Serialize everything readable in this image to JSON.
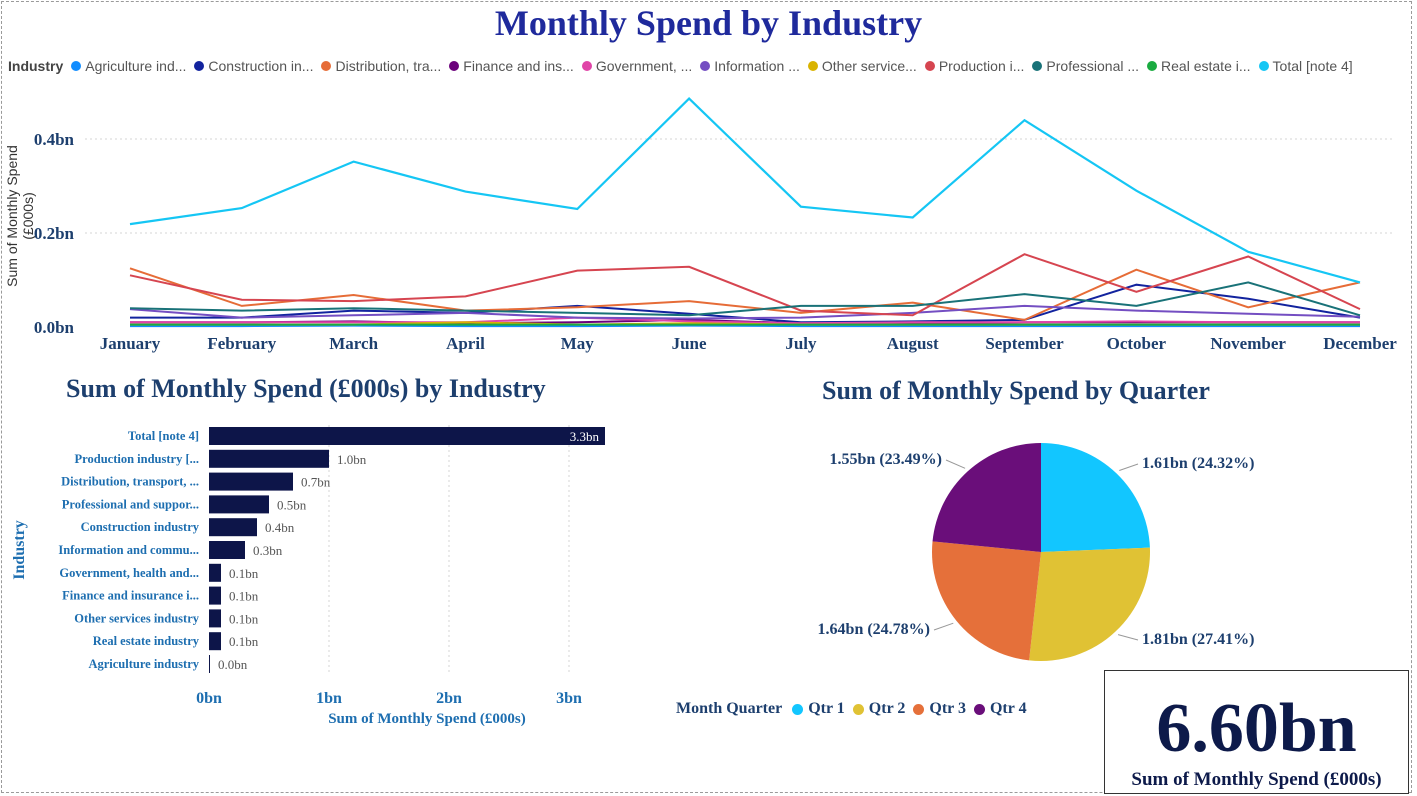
{
  "title": "Monthly Spend by Industry",
  "line_legend_title": "Industry",
  "line_y_label": "Sum of Monthly Spend (£000s)",
  "bar_title": "Sum of Monthly Spend (£000s) by Industry",
  "bar_y_label": "Industry",
  "bar_x_label": "Sum of Monthly Spend (£000s)",
  "pie_title": "Sum of Monthly Spend by Quarter",
  "pie_legend_title": "Month Quarter",
  "kpi": {
    "value": "6.60bn",
    "label": "Sum of Monthly Spend (£000s)"
  },
  "chart_data": [
    {
      "type": "line",
      "x": [
        "January",
        "February",
        "March",
        "April",
        "May",
        "June",
        "July",
        "August",
        "September",
        "October",
        "November",
        "December"
      ],
      "ylim": [
        0,
        0.5
      ],
      "y_ticks": [
        "0.0bn",
        "0.2bn",
        "0.4bn"
      ],
      "grid": true,
      "legend": "top",
      "series": [
        {
          "name": "Agriculture ind...",
          "legend_label": "Agriculture ind...",
          "color": "#118dff",
          "values": [
            0.002,
            0.002,
            0.003,
            0.002,
            0.002,
            0.003,
            0.002,
            0.002,
            0.002,
            0.002,
            0.002,
            0.002
          ]
        },
        {
          "name": "Construction in...",
          "legend_label": "Construction in...",
          "color": "#12239e",
          "values": [
            0.02,
            0.02,
            0.035,
            0.03,
            0.045,
            0.028,
            0.01,
            0.012,
            0.015,
            0.09,
            0.06,
            0.02
          ]
        },
        {
          "name": "Distribution, tra...",
          "legend_label": "Distribution, tra...",
          "color": "#e66c37",
          "values": [
            0.125,
            0.045,
            0.068,
            0.035,
            0.042,
            0.055,
            0.03,
            0.052,
            0.015,
            0.122,
            0.042,
            0.095
          ]
        },
        {
          "name": "Finance and ins...",
          "legend_label": "Finance and ins...",
          "color": "#6b007b",
          "values": [
            0.01,
            0.01,
            0.012,
            0.008,
            0.01,
            0.015,
            0.008,
            0.008,
            0.01,
            0.01,
            0.01,
            0.01
          ]
        },
        {
          "name": "Government, ...",
          "legend_label": "Government, ...",
          "color": "#e044a7",
          "values": [
            0.01,
            0.01,
            0.01,
            0.01,
            0.02,
            0.012,
            0.008,
            0.01,
            0.01,
            0.012,
            0.01,
            0.01
          ]
        },
        {
          "name": "Information ...",
          "legend_label": "Information ...",
          "color": "#744ec2",
          "values": [
            0.038,
            0.02,
            0.025,
            0.03,
            0.02,
            0.018,
            0.02,
            0.03,
            0.045,
            0.035,
            0.028,
            0.022
          ]
        },
        {
          "name": "Other service...",
          "legend_label": "Other service...",
          "color": "#d9b300",
          "values": [
            0.005,
            0.005,
            0.005,
            0.01,
            0.005,
            0.008,
            0.005,
            0.005,
            0.005,
            0.005,
            0.005,
            0.005
          ]
        },
        {
          "name": "Production i...",
          "legend_label": "Production i...",
          "color": "#d64550",
          "values": [
            0.11,
            0.058,
            0.055,
            0.065,
            0.12,
            0.128,
            0.035,
            0.025,
            0.155,
            0.075,
            0.15,
            0.038
          ]
        },
        {
          "name": "Professional ...",
          "legend_label": "Professional ...",
          "color": "#197278",
          "values": [
            0.04,
            0.035,
            0.04,
            0.035,
            0.03,
            0.025,
            0.045,
            0.045,
            0.07,
            0.045,
            0.095,
            0.025
          ]
        },
        {
          "name": "Real estate i...",
          "legend_label": "Real estate i...",
          "color": "#1aab40",
          "values": [
            0.005,
            0.005,
            0.005,
            0.005,
            0.005,
            0.005,
            0.005,
            0.005,
            0.005,
            0.005,
            0.005,
            0.005
          ]
        },
        {
          "name": "Total [note 4]",
          "legend_label": "Total [note 4]",
          "color": "#15c6f4",
          "values": [
            0.219,
            0.253,
            0.352,
            0.288,
            0.251,
            0.486,
            0.256,
            0.233,
            0.44,
            0.29,
            0.16,
            0.095
          ]
        }
      ]
    },
    {
      "type": "bar",
      "orientation": "horizontal",
      "categories": [
        "Total [note 4]",
        "Production industry [...",
        "Distribution, transport, ...",
        "Professional and suppor...",
        "Construction industry",
        "Information and commu...",
        "Government, health and...",
        "Finance and insurance i...",
        "Other services industry",
        "Real estate industry",
        "Agriculture industry"
      ],
      "values": [
        3.3,
        1.0,
        0.7,
        0.5,
        0.4,
        0.3,
        0.1,
        0.1,
        0.1,
        0.1,
        0.0
      ],
      "value_labels": [
        "3.3bn",
        "1.0bn",
        "0.7bn",
        "0.5bn",
        "0.4bn",
        "0.3bn",
        "0.1bn",
        "0.1bn",
        "0.1bn",
        "0.1bn",
        "0.0bn"
      ],
      "xlim": [
        0,
        3.3
      ],
      "x_ticks": [
        "0bn",
        "1bn",
        "2bn",
        "3bn"
      ],
      "color": "#0d1549"
    },
    {
      "type": "pie",
      "categories": [
        "Qtr 1",
        "Qtr 2",
        "Qtr 3",
        "Qtr 4"
      ],
      "values": [
        1.61,
        1.81,
        1.64,
        1.55
      ],
      "labels": [
        "1.61bn (24.32%)",
        "1.81bn (27.41%)",
        "1.64bn (24.78%)",
        "1.55bn (23.49%)"
      ],
      "colors": [
        "#12c6ff",
        "#e0c234",
        "#e5703a",
        "#6a0e7a"
      ],
      "legend": "bottom"
    }
  ]
}
